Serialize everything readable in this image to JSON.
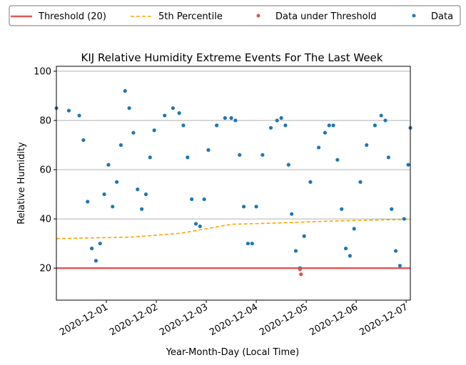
{
  "chart_data": {
    "type": "scatter",
    "title": "KIJ Relative Humidity Extreme Events For The Last Week",
    "xlabel": "Year-Month-Day (Local Time)",
    "ylabel": "Relative Humidity",
    "xlim": [
      "2020-11-30T00:00",
      "2020-12-07T02:00"
    ],
    "ylim": [
      7,
      102
    ],
    "yticks": [
      20,
      40,
      60,
      80,
      100
    ],
    "xticks": [
      "2020-12-01",
      "2020-12-02",
      "2020-12-03",
      "2020-12-04",
      "2020-12-05",
      "2020-12-06",
      "2020-12-07"
    ],
    "grid": "horizontal",
    "legend_position": "top, outside plot",
    "legend": [
      {
        "label": "Threshold (20)",
        "kind": "line-solid",
        "color": "#e15759"
      },
      {
        "label": "5th Percentile",
        "kind": "line-dashed",
        "color": "#ffa500"
      },
      {
        "label": "Data under Threshold",
        "kind": "dot",
        "color": "#d9544f"
      },
      {
        "label": "Data",
        "kind": "dot",
        "color": "#1f77b4"
      }
    ],
    "threshold": {
      "name": "Threshold (20)",
      "value": 20,
      "color": "#e15759"
    },
    "percentile_5th": {
      "name": "5th Percentile",
      "color": "#ffa500",
      "x": [
        "2020-11-30T00:00",
        "2020-12-01T12:00",
        "2020-12-02T12:00",
        "2020-12-03T12:00",
        "2020-12-04T12:00",
        "2020-12-05T12:00",
        "2020-12-06T12:00",
        "2020-12-07T02:00"
      ],
      "y": [
        32,
        32.6,
        34.2,
        37.8,
        38.4,
        39.1,
        39.6,
        39.8
      ]
    },
    "data_series": {
      "name": "Data",
      "color": "#1f77b4",
      "x": [
        "2020-11-30T00:00",
        "2020-11-30T06:00",
        "2020-11-30T11:00",
        "2020-11-30T13:00",
        "2020-11-30T15:00",
        "2020-11-30T17:00",
        "2020-11-30T19:00",
        "2020-11-30T21:00",
        "2020-11-30T23:00",
        "2020-12-01T01:00",
        "2020-12-01T03:00",
        "2020-12-01T05:00",
        "2020-12-01T07:00",
        "2020-12-01T09:00",
        "2020-12-01T11:00",
        "2020-12-01T13:00",
        "2020-12-01T15:00",
        "2020-12-01T17:00",
        "2020-12-01T19:00",
        "2020-12-01T21:00",
        "2020-12-01T23:00",
        "2020-12-02T04:00",
        "2020-12-02T08:00",
        "2020-12-02T11:00",
        "2020-12-02T13:00",
        "2020-12-02T15:00",
        "2020-12-02T17:00",
        "2020-12-02T19:00",
        "2020-12-02T21:00",
        "2020-12-02T23:00",
        "2020-12-03T01:00",
        "2020-12-03T05:00",
        "2020-12-03T09:00",
        "2020-12-03T12:00",
        "2020-12-03T14:00",
        "2020-12-03T16:00",
        "2020-12-03T18:00",
        "2020-12-03T20:00",
        "2020-12-03T22:00",
        "2020-12-04T00:00",
        "2020-12-04T03:00",
        "2020-12-04T07:00",
        "2020-12-04T10:00",
        "2020-12-04T12:00",
        "2020-12-04T14:00",
        "2020-12-04T15:30",
        "2020-12-04T17:00",
        "2020-12-04T19:00",
        "2020-12-04T21:00",
        "2020-12-04T23:00",
        "2020-12-05T02:00",
        "2020-12-05T06:00",
        "2020-12-05T09:00",
        "2020-12-05T11:00",
        "2020-12-05T13:00",
        "2020-12-05T15:00",
        "2020-12-05T17:00",
        "2020-12-05T19:00",
        "2020-12-05T21:00",
        "2020-12-05T23:00",
        "2020-12-06T02:00",
        "2020-12-06T05:00",
        "2020-12-06T09:00",
        "2020-12-06T12:00",
        "2020-12-06T14:00",
        "2020-12-06T15:30",
        "2020-12-06T17:00",
        "2020-12-06T19:00",
        "2020-12-06T21:00",
        "2020-12-06T23:00",
        "2020-12-07T01:00",
        "2020-12-07T02:00"
      ],
      "y": [
        85,
        84,
        82,
        72,
        47,
        28,
        23,
        30,
        50,
        62,
        45,
        55,
        70,
        92,
        85,
        75,
        52,
        44,
        50,
        65,
        76,
        82,
        85,
        83,
        78,
        65,
        48,
        38,
        37,
        48,
        68,
        78,
        81,
        81,
        80,
        66,
        45,
        30,
        30,
        45,
        66,
        77,
        80,
        81,
        78,
        62,
        42,
        27,
        20,
        33,
        55,
        69,
        75,
        78,
        78,
        64,
        44,
        28,
        25,
        36,
        55,
        70,
        78,
        82,
        80,
        65,
        44,
        27,
        21,
        40,
        62,
        77
      ]
    },
    "under_threshold_series": {
      "name": "Data under Threshold",
      "color": "#d9544f",
      "x": [
        "2020-12-04T21:00",
        "2020-12-04T21:30"
      ],
      "y": [
        19.5,
        17.5
      ]
    }
  }
}
